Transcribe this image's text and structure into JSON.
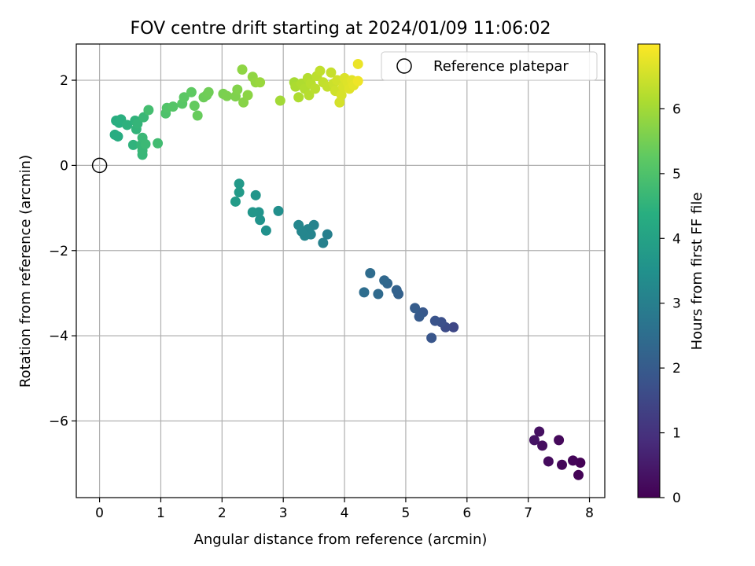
{
  "chart_data": {
    "type": "scatter",
    "title": "FOV centre drift starting at 2024/01/09 11:06:02",
    "xlabel": "Angular distance from reference (arcmin)",
    "ylabel": "Rotation from reference (arcmin)",
    "colorbar_label": "Hours from first FF file",
    "xlim": [
      -0.38,
      8.25
    ],
    "ylim": [
      -7.8,
      2.85
    ],
    "xticks": [
      0,
      1,
      2,
      3,
      4,
      5,
      6,
      7,
      8
    ],
    "yticks": [
      -6,
      -4,
      -2,
      0,
      2
    ],
    "colorbar_range": [
      0,
      7
    ],
    "colorbar_ticks": [
      0,
      1,
      2,
      3,
      4,
      5,
      6
    ],
    "grid": true,
    "legend": {
      "position": "top-right",
      "label": "Reference platepar"
    },
    "reference_point": {
      "x": 0,
      "y": 0
    },
    "points": [
      {
        "x": 7.85,
        "y": -6.98,
        "t": 0.02
      },
      {
        "x": 7.82,
        "y": -7.27,
        "t": 0.05
      },
      {
        "x": 7.73,
        "y": -6.93,
        "t": 0.08
      },
      {
        "x": 7.55,
        "y": -7.03,
        "t": 0.12
      },
      {
        "x": 7.5,
        "y": -6.45,
        "t": 0.15
      },
      {
        "x": 7.33,
        "y": -6.95,
        "t": 0.2
      },
      {
        "x": 7.23,
        "y": -6.58,
        "t": 0.25
      },
      {
        "x": 7.18,
        "y": -6.25,
        "t": 0.3
      },
      {
        "x": 7.1,
        "y": -6.45,
        "t": 0.35
      },
      {
        "x": 5.78,
        "y": -3.8,
        "t": 1.5
      },
      {
        "x": 5.65,
        "y": -3.8,
        "t": 1.6
      },
      {
        "x": 5.58,
        "y": -3.68,
        "t": 1.7
      },
      {
        "x": 5.48,
        "y": -3.65,
        "t": 1.8
      },
      {
        "x": 5.42,
        "y": -4.05,
        "t": 1.85
      },
      {
        "x": 5.28,
        "y": -3.45,
        "t": 1.95
      },
      {
        "x": 5.22,
        "y": -3.55,
        "t": 2.0
      },
      {
        "x": 5.15,
        "y": -3.35,
        "t": 2.05
      },
      {
        "x": 4.88,
        "y": -3.02,
        "t": 2.15
      },
      {
        "x": 4.85,
        "y": -2.93,
        "t": 2.2
      },
      {
        "x": 4.7,
        "y": -2.77,
        "t": 2.3
      },
      {
        "x": 4.65,
        "y": -2.7,
        "t": 2.35
      },
      {
        "x": 4.55,
        "y": -3.02,
        "t": 2.4
      },
      {
        "x": 4.42,
        "y": -2.53,
        "t": 2.45
      },
      {
        "x": 4.32,
        "y": -2.98,
        "t": 2.5
      },
      {
        "x": 3.72,
        "y": -1.62,
        "t": 3.0
      },
      {
        "x": 3.65,
        "y": -1.82,
        "t": 3.05
      },
      {
        "x": 3.5,
        "y": -1.4,
        "t": 3.1
      },
      {
        "x": 3.45,
        "y": -1.62,
        "t": 3.12
      },
      {
        "x": 3.4,
        "y": -1.5,
        "t": 3.15
      },
      {
        "x": 3.35,
        "y": -1.65,
        "t": 3.18
      },
      {
        "x": 3.3,
        "y": -1.55,
        "t": 3.2
      },
      {
        "x": 3.25,
        "y": -1.4,
        "t": 3.22
      },
      {
        "x": 2.92,
        "y": -1.07,
        "t": 3.45
      },
      {
        "x": 2.72,
        "y": -1.53,
        "t": 3.5
      },
      {
        "x": 2.62,
        "y": -1.28,
        "t": 3.55
      },
      {
        "x": 2.6,
        "y": -1.1,
        "t": 3.6
      },
      {
        "x": 2.55,
        "y": -0.7,
        "t": 3.62
      },
      {
        "x": 2.5,
        "y": -1.1,
        "t": 3.65
      },
      {
        "x": 2.28,
        "y": -0.43,
        "t": 3.75
      },
      {
        "x": 2.28,
        "y": -0.63,
        "t": 3.78
      },
      {
        "x": 2.22,
        "y": -0.85,
        "t": 3.8
      },
      {
        "x": 0.25,
        "y": 0.72,
        "t": 4.3
      },
      {
        "x": 0.3,
        "y": 0.68,
        "t": 4.32
      },
      {
        "x": 0.27,
        "y": 1.05,
        "t": 4.35
      },
      {
        "x": 0.32,
        "y": 1.0,
        "t": 4.38
      },
      {
        "x": 0.35,
        "y": 1.08,
        "t": 4.4
      },
      {
        "x": 0.45,
        "y": 0.95,
        "t": 4.45
      },
      {
        "x": 0.55,
        "y": 0.48,
        "t": 4.5
      },
      {
        "x": 0.58,
        "y": 1.05,
        "t": 4.52
      },
      {
        "x": 0.6,
        "y": 0.85,
        "t": 4.55
      },
      {
        "x": 0.62,
        "y": 0.98,
        "t": 4.58
      },
      {
        "x": 0.68,
        "y": 0.48,
        "t": 4.6
      },
      {
        "x": 0.7,
        "y": 0.25,
        "t": 4.62
      },
      {
        "x": 0.7,
        "y": 0.35,
        "t": 4.64
      },
      {
        "x": 0.72,
        "y": 1.13,
        "t": 4.66
      },
      {
        "x": 0.7,
        "y": 0.65,
        "t": 4.68
      },
      {
        "x": 0.75,
        "y": 0.5,
        "t": 4.7
      },
      {
        "x": 0.95,
        "y": 0.52,
        "t": 4.8
      },
      {
        "x": 0.8,
        "y": 1.3,
        "t": 4.85
      },
      {
        "x": 1.08,
        "y": 1.22,
        "t": 5.0
      },
      {
        "x": 1.1,
        "y": 1.35,
        "t": 5.05
      },
      {
        "x": 1.2,
        "y": 1.38,
        "t": 5.1
      },
      {
        "x": 1.35,
        "y": 1.45,
        "t": 5.15
      },
      {
        "x": 1.38,
        "y": 1.6,
        "t": 5.2
      },
      {
        "x": 1.5,
        "y": 1.72,
        "t": 5.25
      },
      {
        "x": 1.55,
        "y": 1.4,
        "t": 5.3
      },
      {
        "x": 1.6,
        "y": 1.17,
        "t": 5.35
      },
      {
        "x": 1.7,
        "y": 1.6,
        "t": 5.4
      },
      {
        "x": 1.75,
        "y": 1.65,
        "t": 5.42
      },
      {
        "x": 1.78,
        "y": 1.72,
        "t": 5.45
      },
      {
        "x": 2.02,
        "y": 1.68,
        "t": 5.55
      },
      {
        "x": 2.08,
        "y": 1.63,
        "t": 5.58
      },
      {
        "x": 2.22,
        "y": 1.62,
        "t": 5.62
      },
      {
        "x": 2.25,
        "y": 1.78,
        "t": 5.65
      },
      {
        "x": 2.35,
        "y": 1.48,
        "t": 5.7
      },
      {
        "x": 2.42,
        "y": 1.65,
        "t": 5.75
      },
      {
        "x": 2.33,
        "y": 2.25,
        "t": 5.78
      },
      {
        "x": 2.5,
        "y": 2.08,
        "t": 5.8
      },
      {
        "x": 2.55,
        "y": 1.95,
        "t": 5.85
      },
      {
        "x": 2.62,
        "y": 1.95,
        "t": 5.9
      },
      {
        "x": 2.95,
        "y": 1.52,
        "t": 6.0
      },
      {
        "x": 3.18,
        "y": 1.95,
        "t": 6.05
      },
      {
        "x": 3.2,
        "y": 1.85,
        "t": 6.1
      },
      {
        "x": 3.25,
        "y": 1.6,
        "t": 6.12
      },
      {
        "x": 3.3,
        "y": 1.92,
        "t": 6.15
      },
      {
        "x": 3.35,
        "y": 1.8,
        "t": 6.18
      },
      {
        "x": 3.4,
        "y": 2.05,
        "t": 6.2
      },
      {
        "x": 3.42,
        "y": 1.65,
        "t": 6.22
      },
      {
        "x": 3.45,
        "y": 1.92,
        "t": 6.25
      },
      {
        "x": 3.52,
        "y": 1.8,
        "t": 6.28
      },
      {
        "x": 3.55,
        "y": 2.1,
        "t": 6.3
      },
      {
        "x": 3.6,
        "y": 2.22,
        "t": 6.33
      },
      {
        "x": 3.65,
        "y": 1.95,
        "t": 6.35
      },
      {
        "x": 3.72,
        "y": 1.85,
        "t": 6.38
      },
      {
        "x": 3.78,
        "y": 2.18,
        "t": 6.4
      },
      {
        "x": 3.82,
        "y": 1.92,
        "t": 6.45
      },
      {
        "x": 3.85,
        "y": 1.75,
        "t": 6.5
      },
      {
        "x": 3.88,
        "y": 2.0,
        "t": 6.52
      },
      {
        "x": 3.92,
        "y": 1.48,
        "t": 6.55
      },
      {
        "x": 3.95,
        "y": 1.65,
        "t": 6.58
      },
      {
        "x": 3.98,
        "y": 1.85,
        "t": 6.6
      },
      {
        "x": 4.0,
        "y": 2.05,
        "t": 6.63
      },
      {
        "x": 4.05,
        "y": 1.95,
        "t": 6.65
      },
      {
        "x": 4.08,
        "y": 1.8,
        "t": 6.68
      },
      {
        "x": 4.12,
        "y": 2.0,
        "t": 6.7
      },
      {
        "x": 4.15,
        "y": 1.88,
        "t": 6.73
      },
      {
        "x": 4.22,
        "y": 2.38,
        "t": 6.8
      },
      {
        "x": 4.22,
        "y": 1.98,
        "t": 6.85
      }
    ]
  }
}
